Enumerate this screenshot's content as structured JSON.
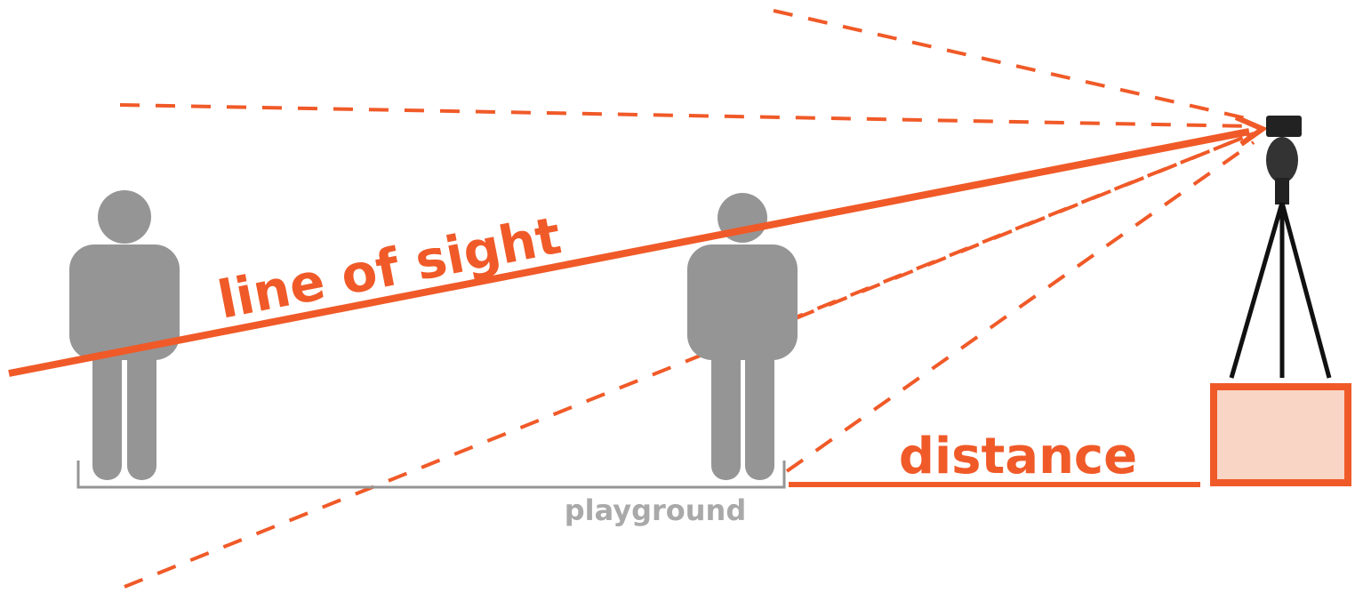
{
  "labels": {
    "line_of_sight": "line of sight",
    "distance": "distance",
    "playground": "playground"
  }
}
